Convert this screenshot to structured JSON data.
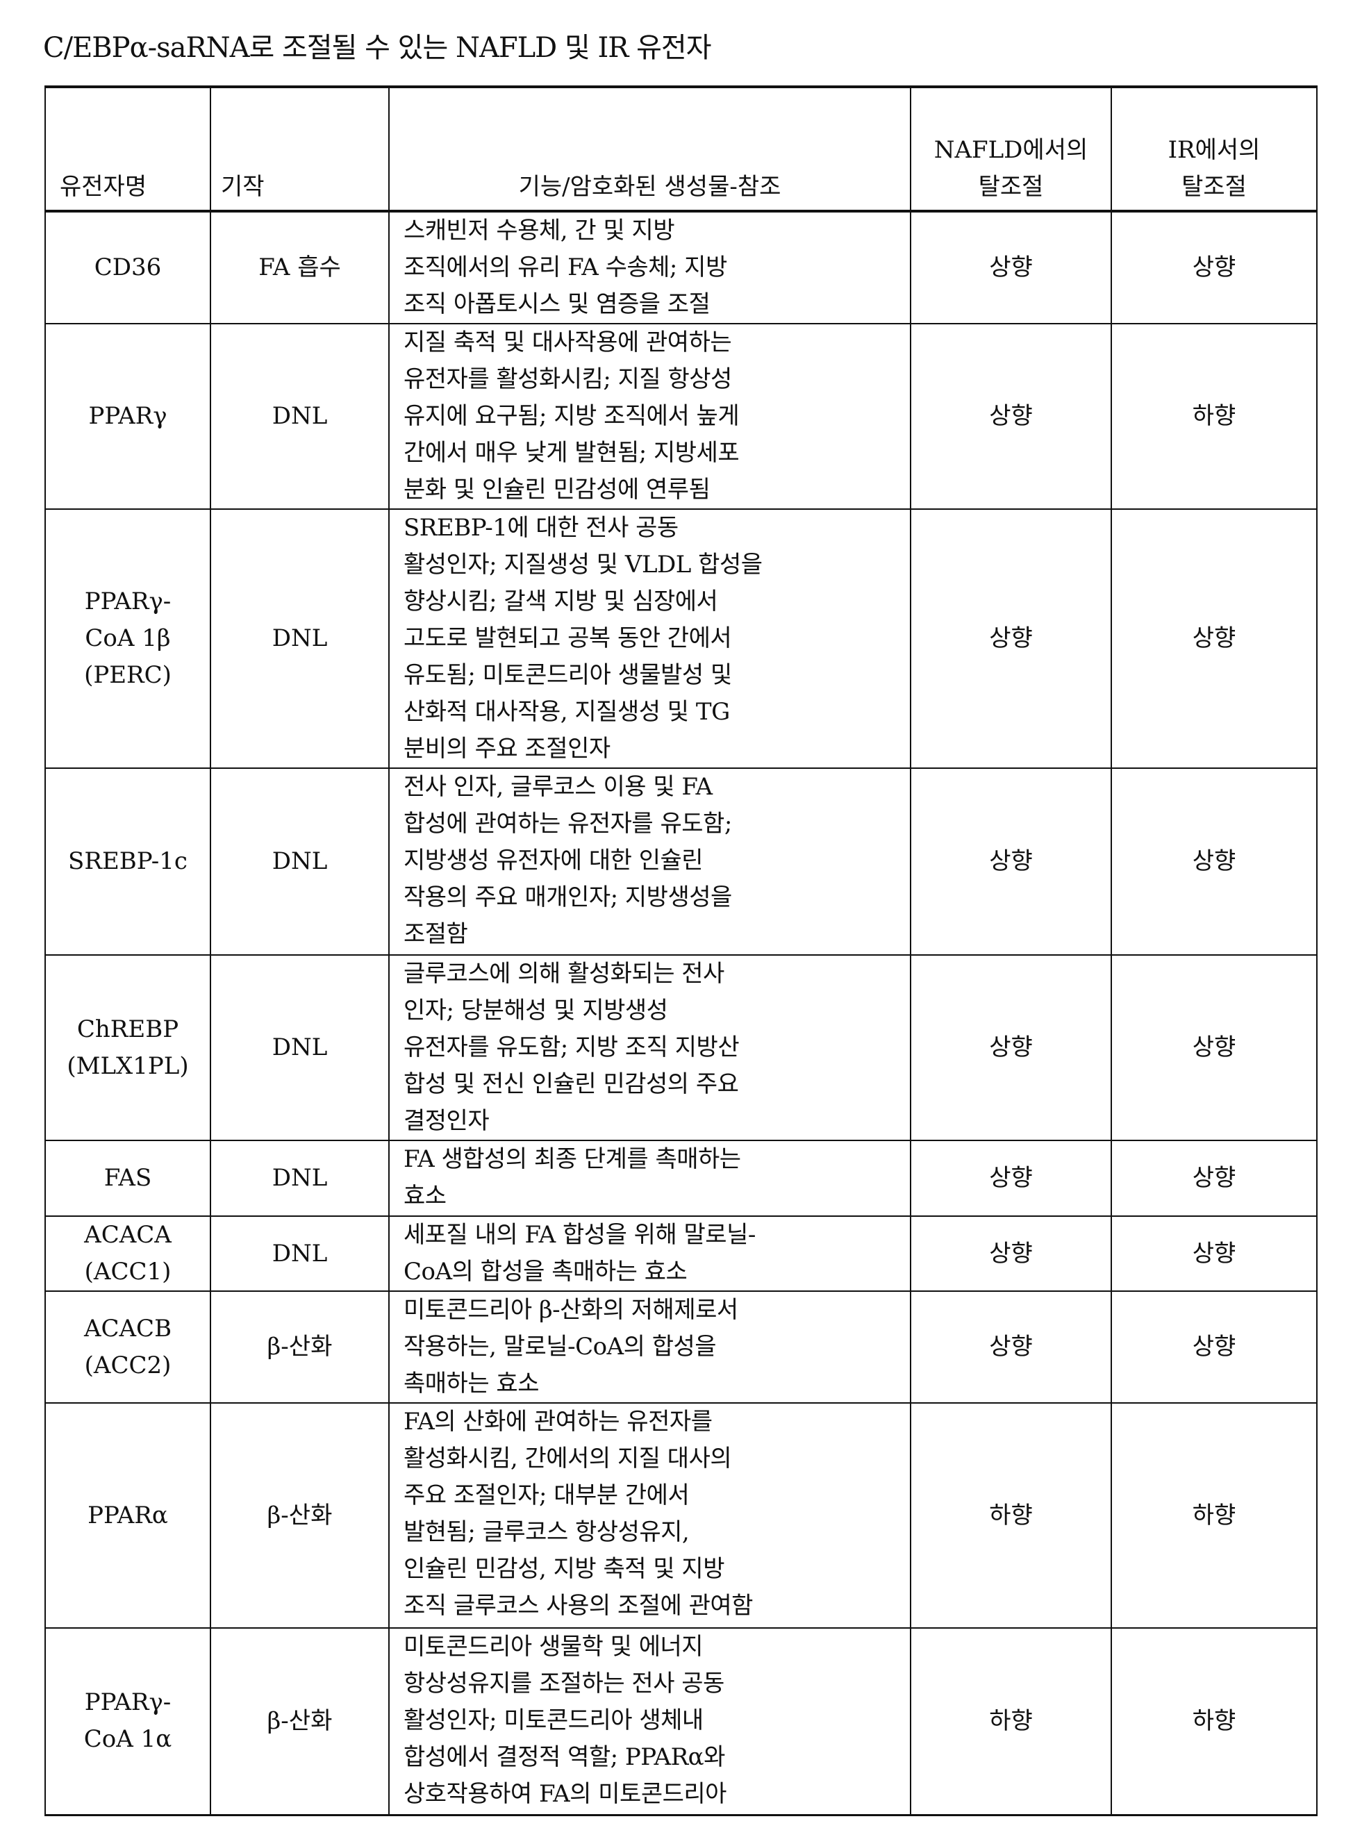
{
  "title": "C/EBPα-saRNA로 조절될 수 있는 NAFLD 및 IR 유전자",
  "table": {
    "headers": {
      "gene": [
        "유전자명"
      ],
      "mechanism": [
        "기작"
      ],
      "function": [
        "기능/암호화된 생성물-참조"
      ],
      "nafld": [
        "NAFLD에서의",
        "탈조절"
      ],
      "ir": [
        "IR에서의",
        "탈조절"
      ]
    },
    "rows": [
      {
        "gene": [
          "CD36"
        ],
        "mechanism": "FA 흡수",
        "function": [
          "스캐빈저 수용체, 간 및 지방",
          "조직에서의 유리 FA 수송체; 지방",
          "조직 아폽토시스 및 염증을 조절"
        ],
        "nafld": "상향",
        "ir": "상향"
      },
      {
        "gene": [
          "PPARγ"
        ],
        "mechanism": "DNL",
        "function": [
          "지질 축적 및 대사작용에 관여하는",
          "유전자를 활성화시킴; 지질 항상성",
          "유지에 요구됨; 지방 조직에서 높게",
          "간에서 매우 낮게 발현됨; 지방세포",
          "분화 및 인슐린 민감성에 연루됨"
        ],
        "nafld": "상향",
        "ir": "하향"
      },
      {
        "gene": [
          "PPARγ-",
          "CoA 1β",
          "(PERC)"
        ],
        "mechanism": "DNL",
        "function": [
          "SREBP-1에 대한 전사 공동",
          "활성인자; 지질생성 및 VLDL 합성을",
          "향상시킴; 갈색 지방 및 심장에서",
          "고도로 발현되고 공복 동안 간에서",
          "유도됨; 미토콘드리아 생물발성 및",
          "산화적 대사작용, 지질생성 및 TG",
          "분비의 주요 조절인자"
        ],
        "nafld": "상향",
        "ir": "상향"
      },
      {
        "gene": [
          "SREBP-1c"
        ],
        "mechanism": "DNL",
        "function": [
          "전사 인자, 글루코스 이용 및 FA",
          "합성에 관여하는 유전자를 유도함;",
          "지방생성 유전자에 대한 인슐린",
          "작용의 주요 매개인자; 지방생성을",
          "조절함"
        ],
        "nafld": "상향",
        "ir": "상향"
      },
      {
        "gene": [
          "ChREBP",
          "(MLX1PL)"
        ],
        "mechanism": "DNL",
        "function": [
          "글루코스에 의해 활성화되는 전사",
          "인자; 당분해성 및 지방생성",
          "유전자를 유도함; 지방 조직 지방산",
          "합성 및 전신 인슐린 민감성의 주요",
          "결정인자"
        ],
        "nafld": "상향",
        "ir": "상향"
      },
      {
        "gene": [
          "FAS"
        ],
        "mechanism": "DNL",
        "function": [
          "FA 생합성의 최종 단계를 촉매하는",
          "효소"
        ],
        "nafld": "상향",
        "ir": "상향"
      },
      {
        "gene": [
          "ACACA",
          "(ACC1)"
        ],
        "mechanism": "DNL",
        "function": [
          "세포질 내의 FA 합성을 위해 말로닐-",
          "CoA의 합성을 촉매하는 효소"
        ],
        "nafld": "상향",
        "ir": "상향"
      },
      {
        "gene": [
          "ACACB",
          "(ACC2)"
        ],
        "mechanism": "β-산화",
        "function": [
          "미토콘드리아 β-산화의 저해제로서",
          "작용하는, 말로닐-CoA의 합성을",
          "촉매하는 효소"
        ],
        "nafld": "상향",
        "ir": "상향"
      },
      {
        "gene": [
          "PPARα"
        ],
        "mechanism": "β-산화",
        "function": [
          "FA의 산화에 관여하는 유전자를",
          "활성화시킴, 간에서의 지질 대사의",
          "주요 조절인자; 대부분 간에서",
          "발현됨; 글루코스 항상성유지,",
          "인슐린 민감성, 지방 축적 및 지방",
          "조직 글루코스 사용의 조절에 관여함"
        ],
        "nafld": "하향",
        "ir": "하향"
      },
      {
        "gene": [
          "PPARγ-",
          "CoA 1α"
        ],
        "mechanism": "β-산화",
        "function": [
          "미토콘드리아 생물학 및 에너지",
          "항상성유지를 조절하는 전사 공동",
          "활성인자; 미토콘드리아 생체내",
          "합성에서 결정적 역할; PPARα와",
          "상호작용하여 FA의 미토콘드리아"
        ],
        "nafld": "하향",
        "ir": "하향"
      }
    ]
  }
}
